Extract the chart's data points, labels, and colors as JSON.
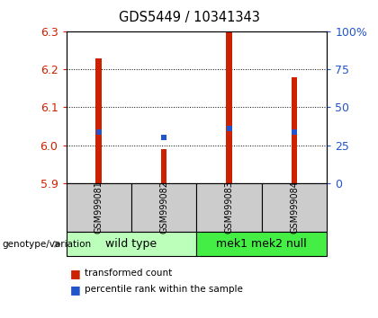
{
  "title": "GDS5449 / 10341343",
  "samples": [
    "GSM999081",
    "GSM999082",
    "GSM999083",
    "GSM999084"
  ],
  "ymin": 5.9,
  "ymax": 6.3,
  "yticks_left": [
    5.9,
    6.0,
    6.1,
    6.2,
    6.3
  ],
  "yticks_right": [
    0,
    25,
    50,
    75,
    100
  ],
  "bar_bottom": 5.9,
  "bar_tops": [
    6.23,
    5.99,
    6.3,
    6.18
  ],
  "percentile_values": [
    6.035,
    6.02,
    6.045,
    6.035
  ],
  "bar_color": "#cc2200",
  "blue_color": "#2255cc",
  "group1_label": "wild type",
  "group2_label": "mek1 mek2 null",
  "group1_bg": "#bbffbb",
  "group2_bg": "#44ee44",
  "sample_box_bg": "#cccccc",
  "legend_red_label": "transformed count",
  "legend_blue_label": "percentile rank within the sample",
  "genotype_label": "genotype/variation"
}
